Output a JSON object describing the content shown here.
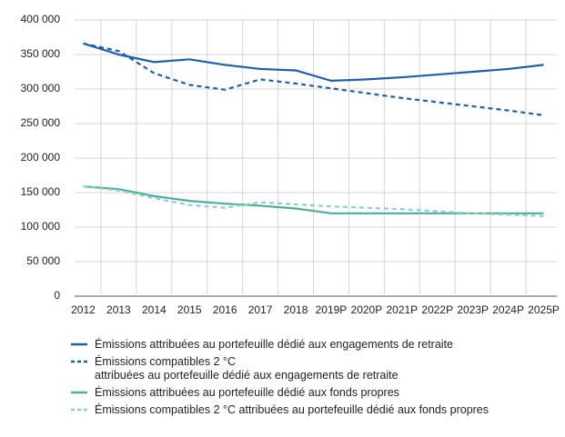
{
  "chart_data": {
    "type": "line",
    "categories": [
      "2012",
      "2013",
      "2014",
      "2015",
      "2016",
      "2017",
      "2018",
      "2019P",
      "2020P",
      "2021P",
      "2022P",
      "2023P",
      "2024P",
      "2025P"
    ],
    "series": [
      {
        "name": "Émissions attribuées au portefeuille dédié aux engagements de retraite",
        "color": "#1f5fa8",
        "dashed": false,
        "values": [
          366000,
          350000,
          339000,
          343000,
          335000,
          329000,
          327000,
          312000,
          314000,
          317000,
          321000,
          325000,
          329000,
          335000
        ]
      },
      {
        "name": "Émissions compatibles 2 °C\nattribuées au portefeuille dédié aux engagements de retraite",
        "color": "#1f5fa8",
        "dashed": true,
        "values": [
          366000,
          355000,
          323000,
          306000,
          299000,
          314000,
          308000,
          301000,
          294000,
          287000,
          281000,
          275000,
          269000,
          262000
        ]
      },
      {
        "name": "Émissions attribuées au portefeuille dédié aux fonds propres",
        "color": "#4fada0",
        "dashed": false,
        "values": [
          159000,
          155000,
          145000,
          138000,
          134000,
          131000,
          127000,
          120000,
          120000,
          120000,
          120000,
          120000,
          120000,
          120000
        ]
      },
      {
        "name": "Émissions compatibles 2 °C attribuées au portefeuille dédié aux fonds propres",
        "color": "#8fd0c7",
        "dashed": true,
        "values": [
          159000,
          153000,
          142000,
          132000,
          128000,
          136000,
          133000,
          130000,
          128000,
          126000,
          123000,
          120000,
          118000,
          116000
        ]
      }
    ],
    "ylim": [
      0,
      400000
    ],
    "yticks": [
      0,
      {
        "value": 50000,
        "label": "50 000"
      },
      {
        "value": 100000,
        "label": "100 000"
      },
      {
        "value": 150000,
        "label": "150 000"
      },
      {
        "value": 200000,
        "label": "200 000"
      },
      {
        "value": 250000,
        "label": "250 000"
      },
      {
        "value": 300000,
        "label": "300 000"
      },
      {
        "value": 350000,
        "label": "350 000"
      },
      {
        "value": 400000,
        "label": "400 000"
      }
    ],
    "grid": true
  }
}
